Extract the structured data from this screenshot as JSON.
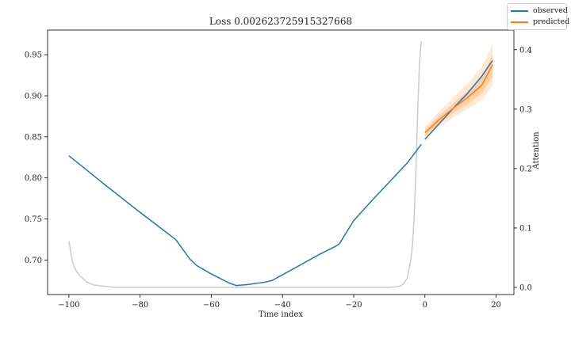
{
  "chart_data": {
    "type": "line",
    "title": "Loss 0.002623725915327668",
    "xlabel": "Time index",
    "ylabel": "",
    "y2label": "Attention",
    "xlim": [
      -106,
      25
    ],
    "ylim": [
      0.658,
      0.98
    ],
    "y2lim": [
      -0.012,
      0.433
    ],
    "xticks": [
      -100,
      -80,
      -60,
      -40,
      -20,
      0,
      20
    ],
    "yticks": [
      0.7,
      0.75,
      0.8,
      0.85,
      0.9,
      0.95
    ],
    "y2ticks": [
      0.0,
      0.1,
      0.2,
      0.3,
      0.4
    ],
    "xtick_labels": [
      "−100",
      "−80",
      "−60",
      "−40",
      "−20",
      "0",
      "20"
    ],
    "ytick_labels": [
      "0.70",
      "0.75",
      "0.80",
      "0.85",
      "0.90",
      "0.95"
    ],
    "y2tick_labels": [
      "0.0",
      "0.1",
      "0.2",
      "0.3",
      "0.4"
    ],
    "grid": false,
    "legend_position": "top-right",
    "series": [
      {
        "name": "observed",
        "color": "#1f77b4",
        "x": [
          -100,
          -90,
          -80,
          -70,
          -66,
          -64,
          -60,
          -55,
          -53,
          -50,
          -45,
          -43,
          -35,
          -30,
          -25,
          -24,
          -20,
          -15,
          -10,
          -5,
          -1
        ],
        "y": [
          0.827,
          0.792,
          0.758,
          0.725,
          0.701,
          0.693,
          0.683,
          0.672,
          0.669,
          0.67,
          0.673,
          0.675,
          0.694,
          0.706,
          0.717,
          0.72,
          0.748,
          0.772,
          0.795,
          0.818,
          0.841
        ]
      },
      {
        "name": "observed",
        "color": "#1f77b4",
        "x": [
          0,
          4,
          8,
          12,
          16,
          19
        ],
        "y": [
          0.847,
          0.866,
          0.885,
          0.903,
          0.924,
          0.943
        ]
      },
      {
        "name": "predicted",
        "color": "#ff7f0e",
        "x": [
          0,
          4,
          8,
          12,
          16,
          19
        ],
        "y": [
          0.855,
          0.871,
          0.885,
          0.898,
          0.913,
          0.938
        ]
      }
    ],
    "predicted_band_outer": {
      "x": [
        0,
        4,
        8,
        12,
        16,
        19
      ],
      "lower": [
        0.848,
        0.862,
        0.874,
        0.884,
        0.895,
        0.913
      ],
      "upper": [
        0.862,
        0.881,
        0.898,
        0.915,
        0.935,
        0.962
      ]
    },
    "predicted_band_inner": {
      "x": [
        0,
        4,
        8,
        12,
        16,
        19
      ],
      "lower": [
        0.851,
        0.866,
        0.879,
        0.89,
        0.903,
        0.924
      ],
      "upper": [
        0.859,
        0.876,
        0.891,
        0.906,
        0.923,
        0.95
      ]
    },
    "attention": {
      "color": "#cccccc",
      "x": [
        -100,
        -99,
        -98,
        -97,
        -95,
        -93,
        -90,
        -87,
        -80,
        -70,
        -60,
        -50,
        -40,
        -30,
        -20,
        -10,
        -7,
        -6,
        -5,
        -4,
        -3.5,
        -3,
        -2.5,
        -2,
        -1.5,
        -1
      ],
      "y": [
        0.078,
        0.042,
        0.028,
        0.02,
        0.009,
        0.004,
        0.002,
        0.0,
        0.0,
        0.0,
        0.0,
        0.0,
        0.0,
        0.0,
        0.0,
        0.0,
        0.002,
        0.006,
        0.015,
        0.045,
        0.07,
        0.12,
        0.2,
        0.3,
        0.38,
        0.415
      ]
    }
  },
  "legend": {
    "items": [
      {
        "label": "observed",
        "color": "#1f77b4"
      },
      {
        "label": "predicted",
        "color": "#ff7f0e"
      }
    ]
  }
}
